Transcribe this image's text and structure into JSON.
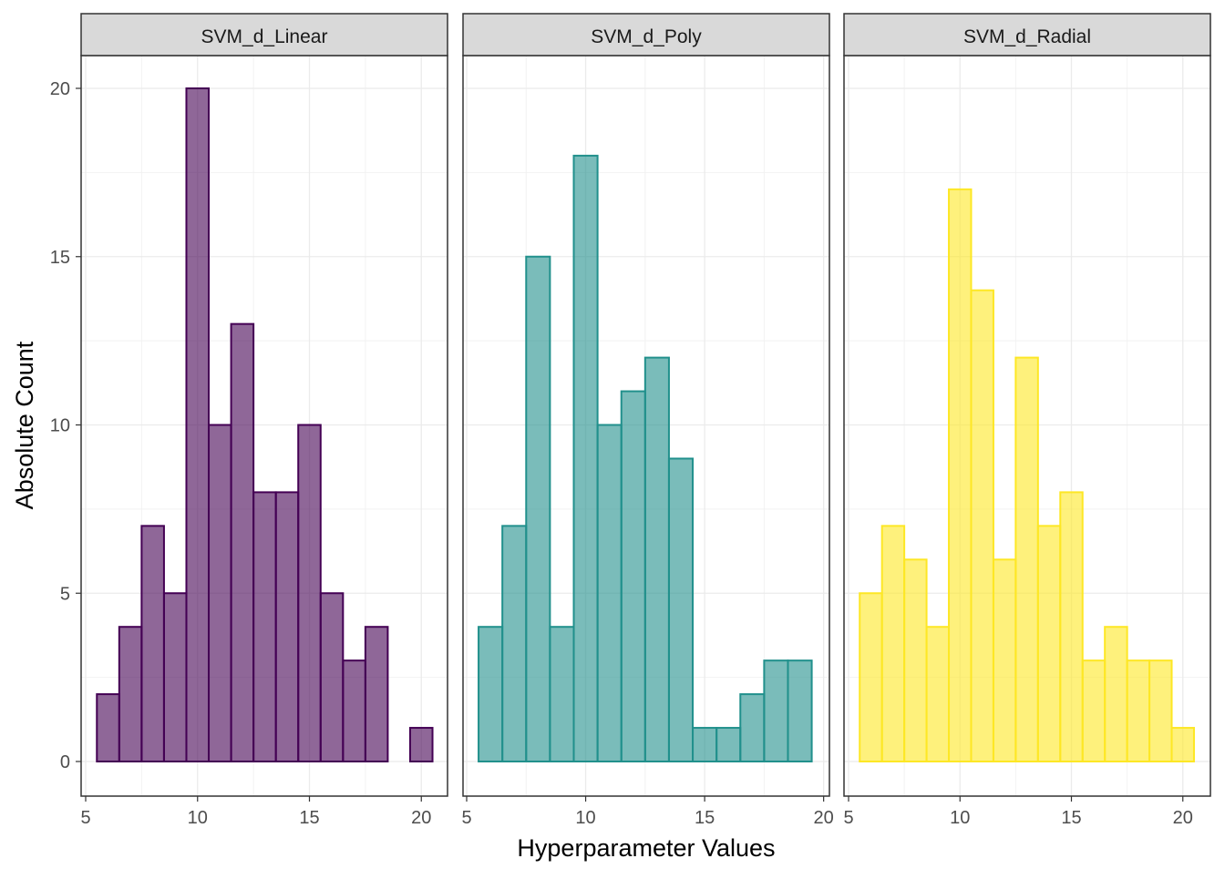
{
  "chart_data": {
    "type": "bar",
    "subtype": "faceted-histogram",
    "xlabel": "Hyperparameter Values",
    "ylabel": "Absolute Count",
    "ylim": [
      0,
      20
    ],
    "yticks": [
      0,
      5,
      10,
      15,
      20
    ],
    "grid": true,
    "legend": "none",
    "facets": [
      {
        "name": "SVM_d_Linear",
        "fill": "#440154",
        "xlim": [
          5,
          21
        ],
        "xticks": [
          5,
          10,
          15,
          20
        ],
        "bins": [
          {
            "x": 6,
            "value": 2
          },
          {
            "x": 7,
            "value": 4
          },
          {
            "x": 8,
            "value": 7
          },
          {
            "x": 9,
            "value": 5
          },
          {
            "x": 10,
            "value": 20
          },
          {
            "x": 11,
            "value": 10
          },
          {
            "x": 12,
            "value": 13
          },
          {
            "x": 13,
            "value": 8
          },
          {
            "x": 14,
            "value": 8
          },
          {
            "x": 15,
            "value": 10
          },
          {
            "x": 16,
            "value": 5
          },
          {
            "x": 17,
            "value": 3
          },
          {
            "x": 18,
            "value": 4
          },
          {
            "x": 19,
            "value": 0
          },
          {
            "x": 20,
            "value": 1
          }
        ]
      },
      {
        "name": "SVM_d_Poly",
        "fill": "#21908C",
        "xlim": [
          5,
          20
        ],
        "xticks": [
          5,
          10,
          15,
          20
        ],
        "bins": [
          {
            "x": 6,
            "value": 4
          },
          {
            "x": 7,
            "value": 7
          },
          {
            "x": 8,
            "value": 15
          },
          {
            "x": 9,
            "value": 4
          },
          {
            "x": 10,
            "value": 18
          },
          {
            "x": 11,
            "value": 10
          },
          {
            "x": 12,
            "value": 11
          },
          {
            "x": 13,
            "value": 12
          },
          {
            "x": 14,
            "value": 9
          },
          {
            "x": 15,
            "value": 1
          },
          {
            "x": 16,
            "value": 1
          },
          {
            "x": 17,
            "value": 2
          },
          {
            "x": 18,
            "value": 3
          },
          {
            "x": 19,
            "value": 3
          }
        ]
      },
      {
        "name": "SVM_d_Radial",
        "fill": "#FDE725",
        "xlim": [
          5,
          21
        ],
        "xticks": [
          5,
          10,
          15,
          20
        ],
        "bins": [
          {
            "x": 6,
            "value": 5
          },
          {
            "x": 7,
            "value": 7
          },
          {
            "x": 8,
            "value": 6
          },
          {
            "x": 9,
            "value": 4
          },
          {
            "x": 10,
            "value": 17
          },
          {
            "x": 11,
            "value": 14
          },
          {
            "x": 12,
            "value": 6
          },
          {
            "x": 13,
            "value": 12
          },
          {
            "x": 14,
            "value": 7
          },
          {
            "x": 15,
            "value": 8
          },
          {
            "x": 16,
            "value": 3
          },
          {
            "x": 17,
            "value": 4
          },
          {
            "x": 18,
            "value": 3
          },
          {
            "x": 19,
            "value": 3
          },
          {
            "x": 20,
            "value": 1
          }
        ]
      }
    ]
  }
}
